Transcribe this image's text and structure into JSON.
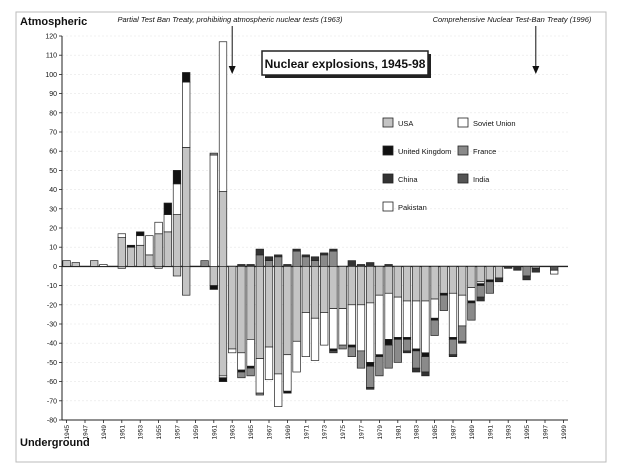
{
  "chart_data": {
    "type": "bar",
    "title": "Nuclear explosions, 1945-98",
    "ylabel_top": "Atmospheric",
    "ylabel_bottom": "Underground",
    "ylim": [
      -80,
      120
    ],
    "yticks": [
      -80,
      -70,
      -60,
      -50,
      -40,
      -30,
      -20,
      -10,
      0,
      10,
      20,
      30,
      40,
      50,
      60,
      70,
      80,
      90,
      100,
      110,
      120
    ],
    "x": [
      1945,
      1946,
      1947,
      1948,
      1949,
      1950,
      1951,
      1952,
      1953,
      1954,
      1955,
      1956,
      1957,
      1958,
      1959,
      1960,
      1961,
      1962,
      1963,
      1964,
      1965,
      1966,
      1967,
      1968,
      1969,
      1970,
      1971,
      1972,
      1973,
      1974,
      1975,
      1976,
      1977,
      1978,
      1979,
      1980,
      1981,
      1982,
      1983,
      1984,
      1985,
      1986,
      1987,
      1988,
      1989,
      1990,
      1991,
      1992,
      1993,
      1994,
      1995,
      1996,
      1997,
      1998,
      1999
    ],
    "xtick_labels": [
      "1945",
      "1947",
      "1949",
      "1951",
      "1953",
      "1955",
      "1957",
      "1959",
      "1961",
      "1963",
      "1965",
      "1967",
      "1969",
      "1971",
      "1973",
      "1975",
      "1977",
      "1979",
      "1981",
      "1983",
      "1985",
      "1987",
      "1989",
      "1991",
      "1993",
      "1995",
      "1997",
      "1999"
    ],
    "annotations": [
      {
        "text": "Partial Test Ban Treaty, prohibiting atmospheric nuclear tests (1963)",
        "year": 1963
      },
      {
        "text": "Comprehensive Nuclear Test-Ban Treaty (1996)",
        "year": 1996
      }
    ],
    "legend": {
      "placement": "top-right",
      "entries": [
        "USA",
        "Soviet Union",
        "United Kingdom",
        "France",
        "China",
        "India",
        "Pakistan"
      ]
    },
    "colors": {
      "USA": "#c4c4c4",
      "Soviet Union": "#ffffff",
      "United Kingdom": "#111111",
      "France": "#8a8a8a",
      "China": "#333333",
      "India": "#555555",
      "Pakistan": "#ffffff"
    },
    "atmospheric": [
      {
        "year": 1945,
        "USA": 3
      },
      {
        "year": 1946,
        "USA": 2
      },
      {
        "year": 1948,
        "USA": 3
      },
      {
        "year": 1949,
        "Soviet Union": 1
      },
      {
        "year": 1951,
        "USA": 15,
        "Soviet Union": 2
      },
      {
        "year": 1952,
        "USA": 10,
        "United Kingdom": 1
      },
      {
        "year": 1953,
        "USA": 11,
        "Soviet Union": 5,
        "United Kingdom": 2
      },
      {
        "year": 1954,
        "USA": 6,
        "Soviet Union": 10
      },
      {
        "year": 1955,
        "USA": 17,
        "Soviet Union": 6
      },
      {
        "year": 1956,
        "USA": 18,
        "Soviet Union": 9,
        "United Kingdom": 6
      },
      {
        "year": 1957,
        "USA": 27,
        "Soviet Union": 16,
        "United Kingdom": 7
      },
      {
        "year": 1958,
        "USA": 62,
        "Soviet Union": 34,
        "United Kingdom": 5
      },
      {
        "year": 1960,
        "France": 3
      },
      {
        "year": 1961,
        "Soviet Union": 58,
        "France": 1
      },
      {
        "year": 1962,
        "USA": 39,
        "Soviet Union": 78
      },
      {
        "year": 1964,
        "China": 1
      },
      {
        "year": 1965,
        "China": 1
      },
      {
        "year": 1966,
        "France": 6,
        "China": 3
      },
      {
        "year": 1967,
        "France": 3,
        "China": 2
      },
      {
        "year": 1968,
        "France": 5,
        "China": 1
      },
      {
        "year": 1969,
        "China": 1
      },
      {
        "year": 1970,
        "France": 8,
        "China": 1
      },
      {
        "year": 1971,
        "France": 5,
        "China": 1
      },
      {
        "year": 1972,
        "France": 3,
        "China": 2
      },
      {
        "year": 1973,
        "France": 6,
        "China": 1
      },
      {
        "year": 1974,
        "France": 8,
        "China": 1
      },
      {
        "year": 1976,
        "China": 3
      },
      {
        "year": 1977,
        "China": 1
      },
      {
        "year": 1978,
        "China": 2
      },
      {
        "year": 1980,
        "China": 1
      }
    ],
    "underground": [
      {
        "year": 1951,
        "USA": 1
      },
      {
        "year": 1955,
        "USA": 1
      },
      {
        "year": 1957,
        "USA": 5
      },
      {
        "year": 1958,
        "USA": 15
      },
      {
        "year": 1961,
        "USA": 10,
        "United Kingdom": 2
      },
      {
        "year": 1962,
        "USA": 57,
        "United Kingdom": 2,
        "Soviet Union": 1
      },
      {
        "year": 1963,
        "USA": 43,
        "Soviet Union": 2
      },
      {
        "year": 1964,
        "USA": 45,
        "Soviet Union": 9,
        "France": 3,
        "United Kingdom": 1
      },
      {
        "year": 1965,
        "USA": 38,
        "Soviet Union": 14,
        "France": 4,
        "United Kingdom": 1
      },
      {
        "year": 1966,
        "USA": 48,
        "Soviet Union": 18,
        "France": 1
      },
      {
        "year": 1967,
        "USA": 42,
        "Soviet Union": 17
      },
      {
        "year": 1968,
        "USA": 56,
        "Soviet Union": 17
      },
      {
        "year": 1969,
        "USA": 46,
        "Soviet Union": 19,
        "United Kingdom": 1
      },
      {
        "year": 1970,
        "USA": 39,
        "Soviet Union": 16
      },
      {
        "year": 1971,
        "USA": 24,
        "Soviet Union": 23
      },
      {
        "year": 1972,
        "USA": 27,
        "Soviet Union": 22
      },
      {
        "year": 1973,
        "USA": 24,
        "Soviet Union": 17
      },
      {
        "year": 1974,
        "USA": 22,
        "Soviet Union": 21,
        "United Kingdom": 1,
        "India": 1
      },
      {
        "year": 1975,
        "USA": 22,
        "Soviet Union": 19,
        "France": 2
      },
      {
        "year": 1976,
        "USA": 20,
        "Soviet Union": 21,
        "France": 5,
        "United Kingdom": 1
      },
      {
        "year": 1977,
        "USA": 20,
        "Soviet Union": 24,
        "France": 9
      },
      {
        "year": 1978,
        "USA": 19,
        "Soviet Union": 31,
        "France": 11,
        "United Kingdom": 2,
        "China": 1
      },
      {
        "year": 1979,
        "USA": 15,
        "Soviet Union": 31,
        "France": 10,
        "United Kingdom": 1
      },
      {
        "year": 1980,
        "USA": 14,
        "Soviet Union": 24,
        "France": 12,
        "United Kingdom": 3
      },
      {
        "year": 1981,
        "USA": 16,
        "Soviet Union": 21,
        "France": 12,
        "United Kingdom": 1
      },
      {
        "year": 1982,
        "USA": 18,
        "Soviet Union": 19,
        "France": 6,
        "United Kingdom": 1,
        "China": 1
      },
      {
        "year": 1983,
        "USA": 18,
        "Soviet Union": 25,
        "France": 9,
        "United Kingdom": 1,
        "China": 2
      },
      {
        "year": 1984,
        "USA": 18,
        "Soviet Union": 27,
        "France": 8,
        "United Kingdom": 2,
        "China": 2
      },
      {
        "year": 1985,
        "USA": 17,
        "Soviet Union": 10,
        "France": 8,
        "United Kingdom": 1
      },
      {
        "year": 1986,
        "USA": 14,
        "France": 8,
        "United Kingdom": 1
      },
      {
        "year": 1987,
        "USA": 14,
        "Soviet Union": 23,
        "France": 8,
        "United Kingdom": 1,
        "China": 1
      },
      {
        "year": 1988,
        "USA": 15,
        "Soviet Union": 16,
        "France": 8,
        "China": 1
      },
      {
        "year": 1989,
        "USA": 11,
        "Soviet Union": 7,
        "France": 9,
        "United Kingdom": 1
      },
      {
        "year": 1990,
        "USA": 8,
        "Soviet Union": 1,
        "France": 6,
        "United Kingdom": 1,
        "China": 2
      },
      {
        "year": 1991,
        "USA": 7,
        "France": 6,
        "United Kingdom": 1
      },
      {
        "year": 1992,
        "USA": 6,
        "China": 2
      },
      {
        "year": 1993,
        "China": 1
      },
      {
        "year": 1994,
        "China": 2
      },
      {
        "year": 1995,
        "France": 5,
        "China": 2
      },
      {
        "year": 1996,
        "France": 1,
        "China": 2
      },
      {
        "year": 1998,
        "India": 2,
        "Pakistan": 2
      }
    ]
  }
}
